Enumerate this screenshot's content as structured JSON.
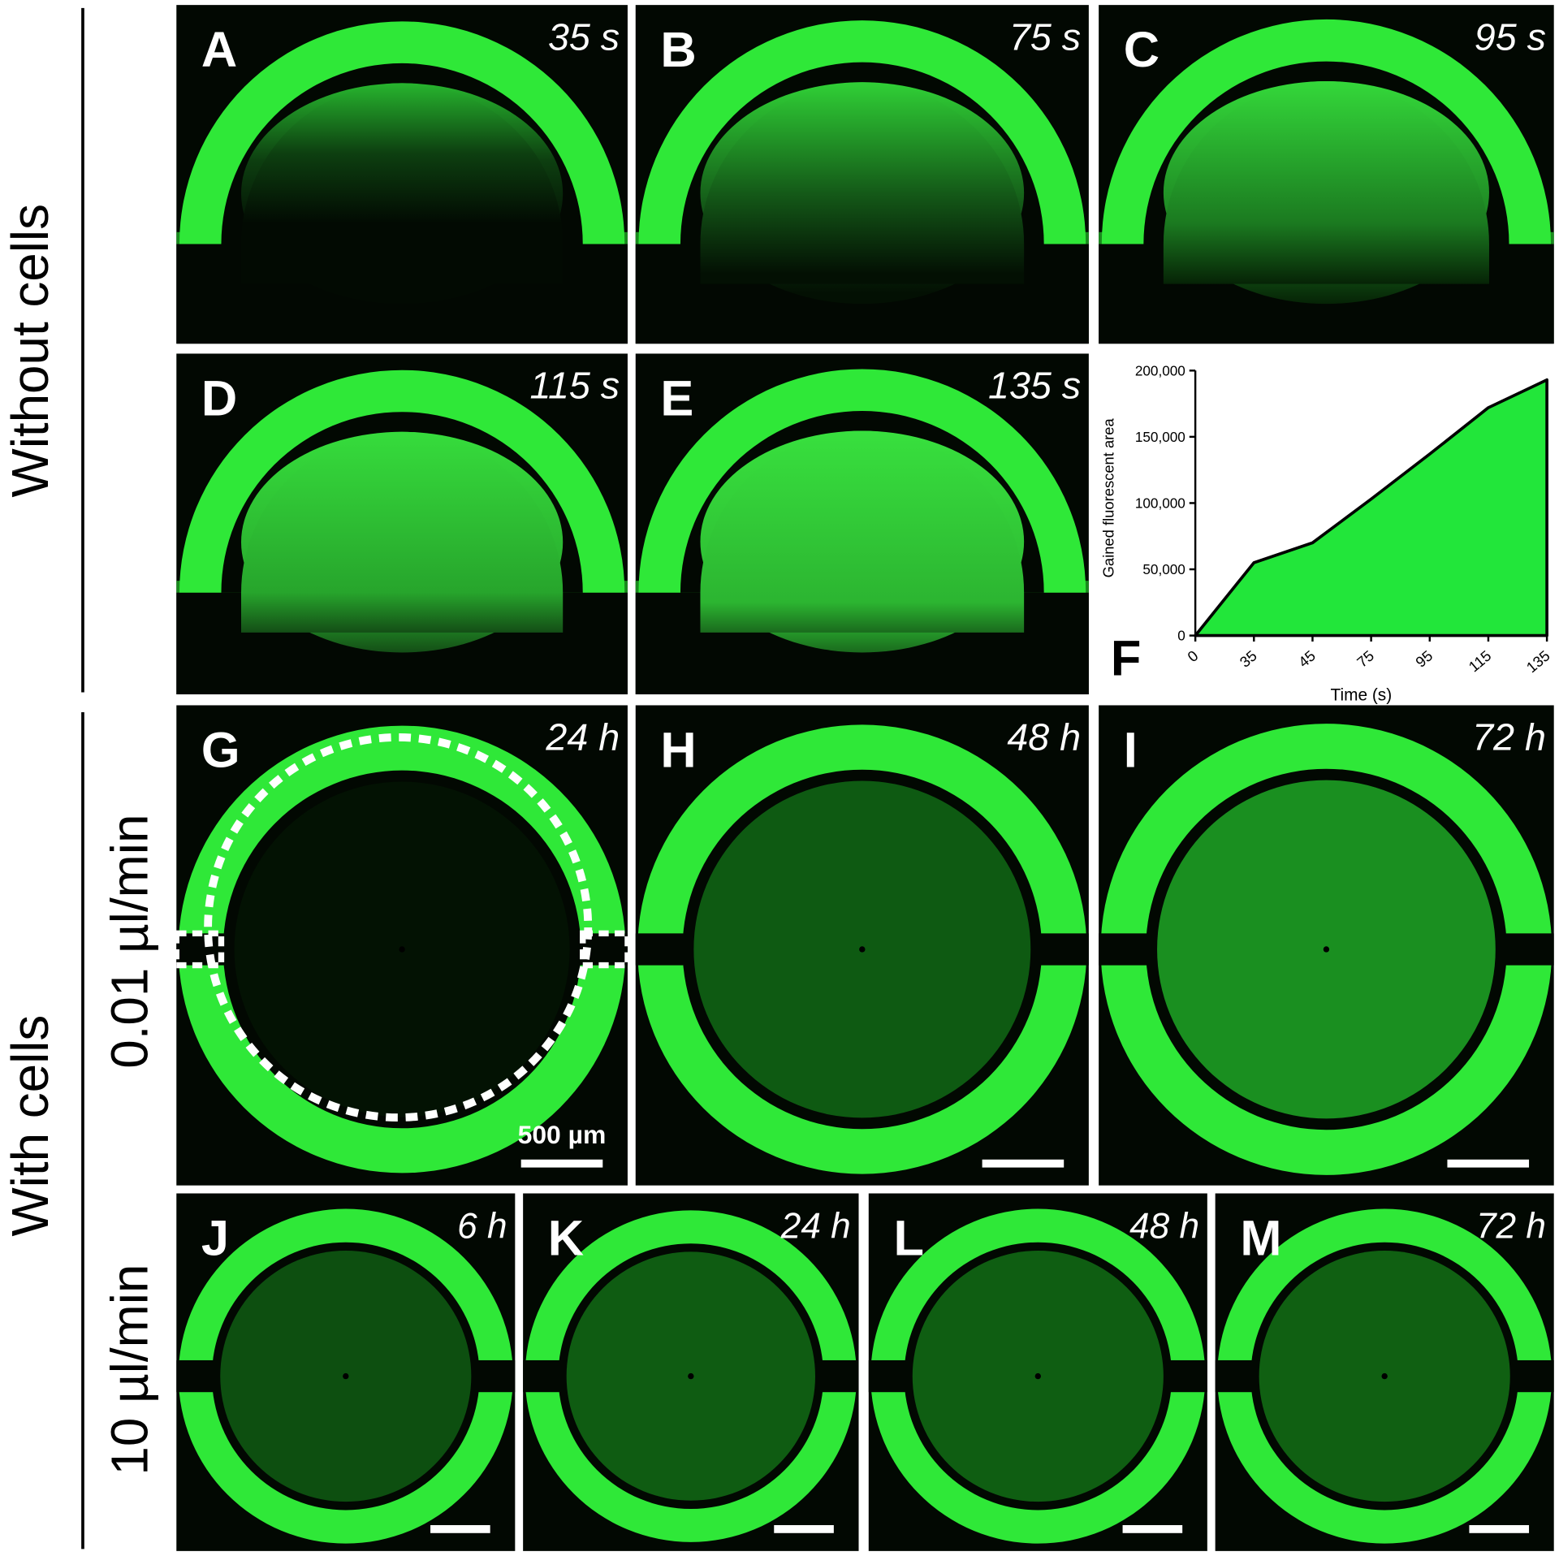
{
  "row_labels": {
    "without_cells": "Without cells",
    "with_cells": "With cells",
    "flow_low": "0.01 µl/min",
    "flow_high": "10 µl/min"
  },
  "panels": [
    {
      "letter": "A",
      "time": "35 s"
    },
    {
      "letter": "B",
      "time": "75 s"
    },
    {
      "letter": "C",
      "time": "95 s"
    },
    {
      "letter": "D",
      "time": "115 s"
    },
    {
      "letter": "E",
      "time": "135 s"
    },
    {
      "letter": "G",
      "time": "24 h"
    },
    {
      "letter": "H",
      "time": "48 h"
    },
    {
      "letter": "I",
      "time": "72 h"
    },
    {
      "letter": "J",
      "time": "6 h"
    },
    {
      "letter": "K",
      "time": "24 h"
    },
    {
      "letter": "L",
      "time": "48 h"
    },
    {
      "letter": "M",
      "time": "72 h"
    }
  ],
  "scale_bar_label": "500 µm",
  "chart_data": {
    "type": "area",
    "panel_label": "F",
    "x_label": "Time (s)",
    "y_label": "Gained fluorescent area",
    "categories": [
      "0",
      "35",
      "45",
      "75",
      "95",
      "115",
      "135"
    ],
    "values": [
      0,
      55000,
      70000,
      103000,
      137000,
      172000,
      193000
    ],
    "color": "#22e63a",
    "ylim": [
      0,
      200000
    ],
    "yticks": [
      0,
      {
        "value": 50000,
        "label": "50,000"
      },
      {
        "value": 100000,
        "label": "100,000"
      },
      {
        "value": 150000,
        "label": "150,000"
      },
      {
        "value": 200000,
        "label": "200,000"
      }
    ]
  }
}
